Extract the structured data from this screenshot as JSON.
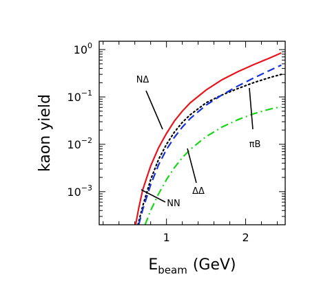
{
  "chart_data": {
    "type": "line",
    "title": "",
    "xlabel": {
      "main": "E",
      "sub": "beam",
      "unit": "(GeV)"
    },
    "ylabel": "kaon yield",
    "xlim": [
      0.15,
      2.5
    ],
    "ylim": [
      0.0002,
      1.5
    ],
    "yscale": "log",
    "grid": false,
    "legend": "none",
    "x_ticks": [
      {
        "value": 1,
        "label": "1"
      },
      {
        "value": 2,
        "label": "2"
      }
    ],
    "y_ticks": [
      {
        "value": 1,
        "base": "10",
        "exp": "0"
      },
      {
        "value": 0.1,
        "base": "10",
        "exp": "−1"
      },
      {
        "value": 0.01,
        "base": "10",
        "exp": "−2"
      },
      {
        "value": 0.001,
        "base": "10",
        "exp": "−3"
      }
    ],
    "series": [
      {
        "name": "NΔ",
        "color": "#e8141b",
        "dash": "solid",
        "points": [
          [
            0.61,
            0.0002
          ],
          [
            0.65,
            0.00045
          ],
          [
            0.7,
            0.0011
          ],
          [
            0.8,
            0.0035
          ],
          [
            0.9,
            0.0085
          ],
          [
            1.0,
            0.017
          ],
          [
            1.1,
            0.031
          ],
          [
            1.2,
            0.05
          ],
          [
            1.3,
            0.075
          ],
          [
            1.5,
            0.14
          ],
          [
            1.7,
            0.23
          ],
          [
            1.9,
            0.34
          ],
          [
            2.1,
            0.48
          ],
          [
            2.3,
            0.66
          ],
          [
            2.45,
            0.85
          ]
        ]
      },
      {
        "name": "NN",
        "color": "#000000",
        "dash": "dotted",
        "points": [
          [
            0.64,
            0.0002
          ],
          [
            0.7,
            0.0005
          ],
          [
            0.8,
            0.0018
          ],
          [
            0.9,
            0.0048
          ],
          [
            1.0,
            0.01
          ],
          [
            1.1,
            0.018
          ],
          [
            1.2,
            0.029
          ],
          [
            1.3,
            0.042
          ],
          [
            1.5,
            0.075
          ],
          [
            1.7,
            0.11
          ],
          [
            1.9,
            0.15
          ],
          [
            2.1,
            0.2
          ],
          [
            2.3,
            0.255
          ],
          [
            2.45,
            0.3
          ]
        ]
      },
      {
        "name": "πB",
        "color": "#1632d6",
        "dash": "dashed",
        "points": [
          [
            0.65,
            0.0002
          ],
          [
            0.7,
            0.00042
          ],
          [
            0.8,
            0.0014
          ],
          [
            0.9,
            0.0037
          ],
          [
            1.0,
            0.0078
          ],
          [
            1.1,
            0.014
          ],
          [
            1.2,
            0.023
          ],
          [
            1.3,
            0.035
          ],
          [
            1.5,
            0.067
          ],
          [
            1.7,
            0.11
          ],
          [
            1.9,
            0.17
          ],
          [
            2.1,
            0.25
          ],
          [
            2.3,
            0.36
          ],
          [
            2.45,
            0.47
          ]
        ]
      },
      {
        "name": "ΔΔ",
        "color": "#16d616",
        "dash": "dashdot",
        "points": [
          [
            0.73,
            0.0002
          ],
          [
            0.8,
            0.0004
          ],
          [
            0.9,
            0.0009
          ],
          [
            1.0,
            0.0018
          ],
          [
            1.1,
            0.0032
          ],
          [
            1.2,
            0.0052
          ],
          [
            1.3,
            0.0078
          ],
          [
            1.5,
            0.0145
          ],
          [
            1.7,
            0.023
          ],
          [
            1.9,
            0.033
          ],
          [
            2.1,
            0.044
          ],
          [
            2.3,
            0.055
          ],
          [
            2.45,
            0.062
          ]
        ]
      }
    ],
    "annotations": [
      {
        "text": "NΔ",
        "series": "NΔ"
      },
      {
        "text": "NN",
        "series": "NN"
      },
      {
        "text": "πB",
        "series": "πB"
      },
      {
        "text": "ΔΔ",
        "series": "ΔΔ"
      }
    ]
  }
}
